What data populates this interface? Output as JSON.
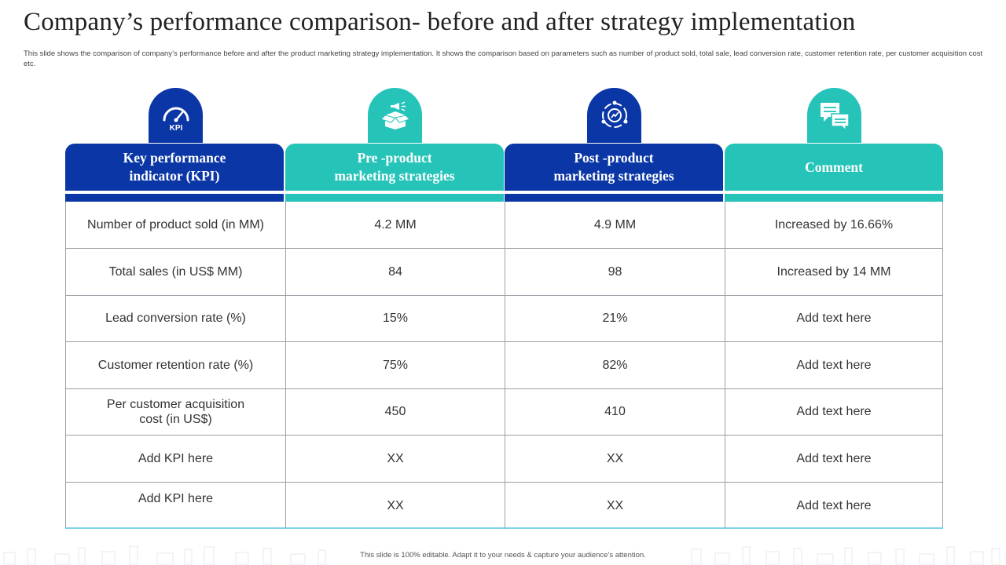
{
  "slide": {
    "title": "Company’s performance comparison- before and after strategy implementation",
    "subtitle": "This slide shows the comparison of company’s performance before and after the product marketing strategy implementation.  It shows the comparison based on parameters such as number of product sold, total sale, lead conversion rate, customer retention rate, per customer acquisition cost etc.",
    "footer": "This slide is 100% editable.  Adapt it to your needs & capture your audience’s attention."
  },
  "colors": {
    "blue": "#0a36a6",
    "teal": "#26c4b8",
    "grid": "#9aa0a6"
  },
  "table": {
    "headers": [
      {
        "label": "Key performance\nindicator (KPI)",
        "color": "blue",
        "icon": "kpi-gauge-icon",
        "icon_text": "KPI"
      },
      {
        "label": "Pre -product\nmarketing strategies",
        "color": "teal",
        "icon": "product-box-megaphone-icon"
      },
      {
        "label": "Post -product\nmarketing strategies",
        "color": "blue",
        "icon": "strategy-cycle-icon"
      },
      {
        "label": "Comment",
        "color": "teal",
        "icon": "chat-bubbles-icon"
      }
    ],
    "rows": [
      [
        "Number of product sold (in MM)",
        "4.2 MM",
        "4.9 MM",
        "Increased by 16.66%"
      ],
      [
        "Total sales (in US$ MM)",
        "84",
        "98",
        "Increased by 14 MM"
      ],
      [
        "Lead conversion rate (%)",
        "15%",
        "21%",
        "Add text here"
      ],
      [
        "Customer retention rate (%)",
        "75%",
        "82%",
        "Add text here"
      ],
      [
        "Per customer acquisition\ncost (in US$)",
        "450",
        "410",
        "Add text here"
      ],
      [
        "Add KPI here",
        "XX",
        "XX",
        "Add text here"
      ],
      [
        "Add KPI here",
        "XX",
        "XX",
        "Add text here"
      ]
    ]
  }
}
